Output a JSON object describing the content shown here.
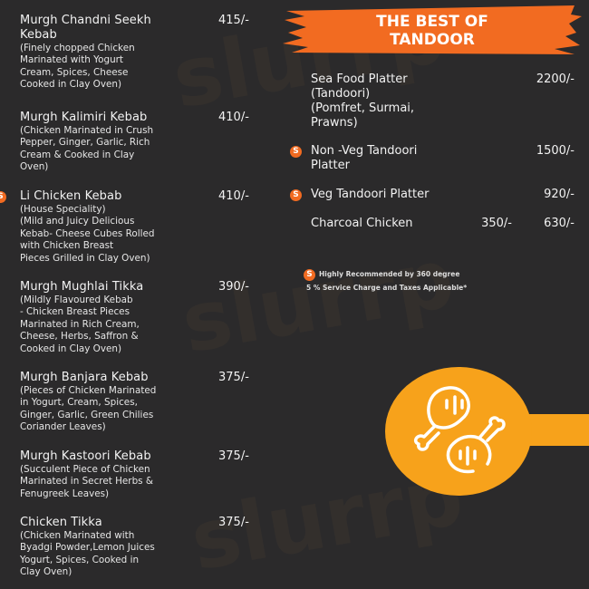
{
  "left_items": [
    {
      "title": [
        "Murgh Chandni Seekh",
        "Kebab"
      ],
      "desc": [
        "(Finely chopped Chicken",
        "Marinated with Yogurt",
        "Cream, Spices, Cheese",
        "Cooked in Clay Oven)"
      ],
      "price": "415/-",
      "recommended": false
    },
    {
      "title": [
        "Murgh Kalimiri Kebab"
      ],
      "desc": [
        "(Chicken Marinated in Crush",
        "Pepper, Ginger, Garlic, Rich",
        "Cream & Cooked in Clay",
        "Oven)"
      ],
      "price": "410/-",
      "recommended": false
    },
    {
      "title": [
        "Li Chicken Kebab"
      ],
      "desc": [
        "(House Speciality)",
        "(Mild and Juicy Delicious",
        "Kebab- Cheese Cubes Rolled",
        "with Chicken Breast",
        "Pieces Grilled in Clay Oven)"
      ],
      "price": "410/-",
      "recommended": true
    },
    {
      "title": [
        "Murgh Mughlai Tikka"
      ],
      "desc": [
        "(Mildly Flavoured Kebab",
        "- Chicken Breast Pieces",
        "Marinated in Rich Cream,",
        "Cheese, Herbs, Saffron &",
        "Cooked in Clay Oven)"
      ],
      "price": "390/-",
      "recommended": false
    },
    {
      "title": [
        "Murgh Banjara Kebab"
      ],
      "desc": [
        "(Pieces of Chicken Marinated",
        "in Yogurt, Cream, Spices,",
        "Ginger, Garlic, Green Chilies",
        "Coriander Leaves)"
      ],
      "price": "375/-",
      "recommended": false
    },
    {
      "title": [
        "Murgh Kastoori Kebab"
      ],
      "desc": [
        "(Succulent Piece of Chicken",
        "Marinated in Secret Herbs &",
        "Fenugreek Leaves)"
      ],
      "price": "375/-",
      "recommended": false
    },
    {
      "title": [
        "Chicken Tikka"
      ],
      "desc": [
        "(Chicken Marinated with",
        "Byadgi Powder,Lemon Juices",
        "Yogurt, Spices, Cooked in",
        "Clay Oven)"
      ],
      "price": "375/-",
      "recommended": false
    }
  ],
  "section": {
    "title_line1": "THE BEST OF",
    "title_line2": "TANDOOR"
  },
  "right_items": [
    {
      "title": [
        "Sea Food Platter",
        "(Tandoori)",
        "(Pomfret, Surmai,",
        "Prawns)"
      ],
      "price": "2200/-",
      "recommended": false
    },
    {
      "title": [
        "Non -Veg Tandoori",
        "Platter"
      ],
      "price": "1500/-",
      "recommended": true
    },
    {
      "title": [
        "Veg Tandoori Platter"
      ],
      "price": "920/-",
      "recommended": true
    },
    {
      "title": [
        "Charcoal Chicken"
      ],
      "price_half": "350/-",
      "price": "630/-",
      "recommended": false
    }
  ],
  "badge_letter": "S",
  "notes": {
    "recommended": "Highly Recommended by 360 degree",
    "service": "5 % Service Charge and Taxes Applicable*"
  },
  "watermark": "slurrp",
  "icon": "chicken-leg-icon",
  "colors": {
    "background": "#2b2a2b",
    "header_orange": "#f26b21",
    "circle_orange": "#f7a21b",
    "text": "#f2f2f2"
  }
}
